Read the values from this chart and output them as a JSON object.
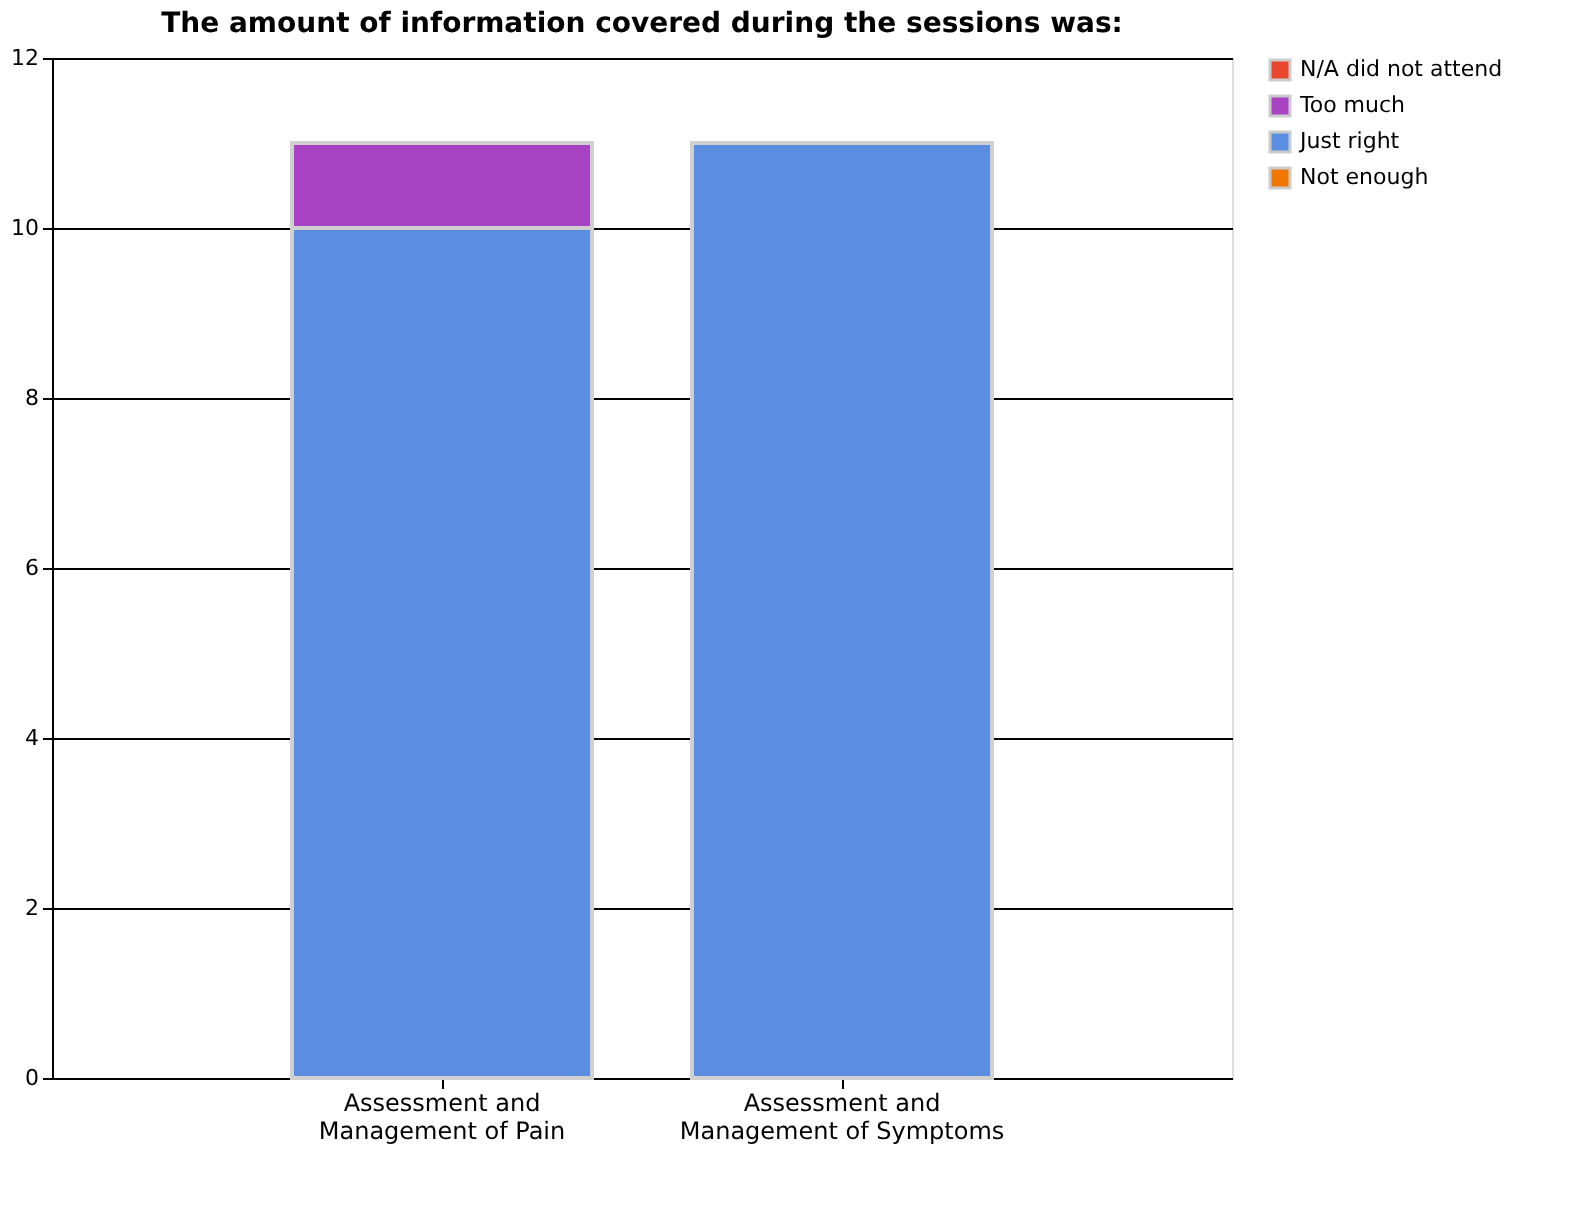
{
  "chart_data": {
    "type": "bar",
    "title": "The amount of information covered during the sessions was:",
    "categories": [
      "Assessment and\nManagement of Pain",
      "Assessment and\nManagement of Symptoms"
    ],
    "stacked": true,
    "series": [
      {
        "name": "Not enough",
        "color": "#f07800",
        "values": [
          0,
          0
        ]
      },
      {
        "name": "Just right",
        "color": "#5b8de0",
        "values": [
          10,
          11
        ]
      },
      {
        "name": "Too much",
        "color": "#a844c4",
        "values": [
          1,
          0
        ]
      },
      {
        "name": "N/A did not attend",
        "color": "#e8462e",
        "values": [
          0,
          0
        ]
      }
    ],
    "ylim": [
      0,
      12
    ],
    "yticks": [
      0,
      2,
      4,
      6,
      8,
      10,
      12
    ],
    "grid": "y",
    "legend": "right"
  }
}
